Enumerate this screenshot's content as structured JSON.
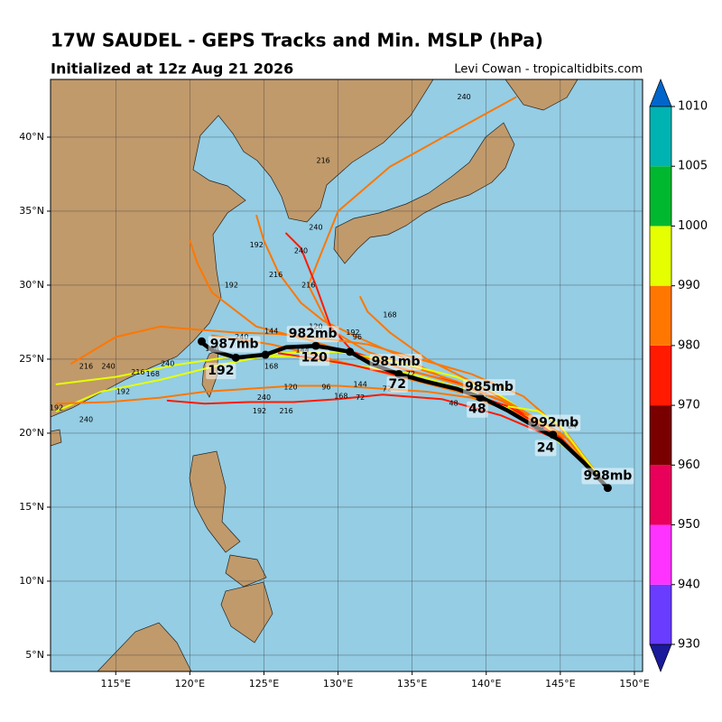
{
  "chart_data": {
    "type": "track_map",
    "title": "17W SAUDEL - GEPS Tracks and Min. MSLP (hPa)",
    "subtitle": "Initialized at 12z Aug 21 2026",
    "credit": "Levi Cowan - tropicaltidbits.com",
    "xlim": [
      110.6,
      150.55
    ],
    "ylim": [
      3.9,
      43.9
    ],
    "xticks": [
      {
        "value": 115,
        "label": "115°E"
      },
      {
        "value": 120,
        "label": "120°E"
      },
      {
        "value": 125,
        "label": "125°E"
      },
      {
        "value": 130,
        "label": "130°E"
      },
      {
        "value": 135,
        "label": "135°E"
      },
      {
        "value": 140,
        "label": "140°E"
      },
      {
        "value": 145,
        "label": "145°E"
      },
      {
        "value": 150,
        "label": "150°E"
      }
    ],
    "yticks": [
      {
        "value": 5,
        "label": "5°N"
      },
      {
        "value": 10,
        "label": "10°N"
      },
      {
        "value": 15,
        "label": "15°N"
      },
      {
        "value": 20,
        "label": "20°N"
      },
      {
        "value": 25,
        "label": "25°N"
      },
      {
        "value": 30,
        "label": "30°N"
      },
      {
        "value": 35,
        "label": "35°N"
      },
      {
        "value": 40,
        "label": "40°N"
      }
    ],
    "grid": true,
    "colorbar": {
      "levels": [
        930,
        940,
        950,
        960,
        970,
        980,
        990,
        1000,
        1005,
        1010
      ],
      "colors": [
        "#6a3cff",
        "#ff33ff",
        "#e8005a",
        "#7a0000",
        "#ff1a00",
        "#ff7700",
        "#e6ff00",
        "#00b830",
        "#00b3b3"
      ],
      "under_color": "#1a1a9a",
      "over_color": "#0066cc"
    },
    "tracks": [
      {
        "color": "#ff7700",
        "lon": [
          148.2,
          145.5,
          142,
          138.5,
          135,
          131,
          128,
          125.5,
          123,
          121.5
        ],
        "lat": [
          16.3,
          19.6,
          21.5,
          22.7,
          23.6,
          24.6,
          25.4,
          26.0,
          26.4,
          26.6
        ]
      },
      {
        "color": "#ff7700",
        "lon": [
          148.2,
          145,
          141,
          137,
          134,
          131.5,
          129,
          127.5,
          126,
          125,
          124.5
        ],
        "lat": [
          16.3,
          19.8,
          22.2,
          23.8,
          25.3,
          26.4,
          27.6,
          28.8,
          30.8,
          33.0,
          34.7
        ]
      },
      {
        "color": "#ff7700",
        "lon": [
          148.2,
          145,
          141.5,
          138,
          135,
          132,
          129.5,
          128,
          130,
          133.5,
          138,
          142
        ],
        "lat": [
          16.3,
          19.8,
          22,
          23.5,
          24.5,
          25.5,
          27,
          30,
          35,
          38,
          40.5,
          42.7
        ]
      },
      {
        "color": "#ff1a00",
        "lon": [
          148.2,
          145,
          141.5,
          138,
          134.5,
          131,
          129.5,
          128.5,
          127.5,
          126.5
        ],
        "lat": [
          16.3,
          19.7,
          22,
          23.4,
          24.3,
          25.5,
          27.2,
          30,
          32.5,
          33.5
        ]
      },
      {
        "color": "#ff1a00",
        "lon": [
          148.2,
          145,
          141,
          137,
          133,
          130,
          127,
          124,
          121,
          118.5
        ],
        "lat": [
          16.3,
          19.5,
          21.2,
          22.3,
          22.6,
          22.3,
          22.1,
          22.1,
          22.0,
          22.2
        ]
      },
      {
        "color": "#e6ff00",
        "lon": [
          148.2,
          146,
          143,
          139,
          135,
          131,
          127,
          123,
          119,
          115,
          111
        ],
        "lat": [
          16.3,
          18.5,
          21,
          22.8,
          24,
          24.6,
          25.2,
          25.2,
          24.6,
          23.8,
          23.3
        ]
      },
      {
        "color": "#e6ff00",
        "lon": [
          148.2,
          146.5,
          144,
          141,
          138,
          134,
          130,
          126,
          122,
          118,
          114,
          111
        ],
        "lat": [
          16.3,
          18.2,
          20.5,
          22.5,
          23.8,
          24.8,
          25.5,
          25.4,
          24.6,
          23.6,
          22.8,
          21.5
        ]
      },
      {
        "color": "#ff7700",
        "lon": [
          148.2,
          145,
          142,
          139,
          136,
          133,
          130,
          127,
          124,
          121,
          118,
          114.5,
          111
        ],
        "lat": [
          16.3,
          19.7,
          21.4,
          22.4,
          22.8,
          23,
          23.2,
          23.2,
          23,
          22.8,
          22.4,
          22.1,
          22
        ]
      },
      {
        "color": "#ff7700",
        "lon": [
          148.2,
          145.5,
          142.5,
          139,
          135.5,
          132,
          129,
          126,
          123,
          120.5,
          118,
          115,
          112
        ],
        "lat": [
          16.3,
          19.9,
          22.5,
          24,
          25,
          26,
          26.4,
          26.7,
          26.8,
          27,
          27.2,
          26.5,
          24.7
        ]
      },
      {
        "color": "#ff7700",
        "lon": [
          148.2,
          145,
          142,
          139,
          136,
          133.5,
          132,
          131.5
        ],
        "lat": [
          16.3,
          19.6,
          21.8,
          23.5,
          25,
          26.8,
          28.2,
          29.2
        ]
      },
      {
        "color": "#ff7700",
        "lon": [
          148.2,
          145.2,
          142,
          138.5,
          135,
          131.5,
          128,
          124.5,
          121.5,
          120.5,
          120
        ],
        "lat": [
          16.3,
          19.9,
          21.8,
          23.2,
          24.2,
          25.2,
          26.3,
          27.2,
          29.5,
          31.5,
          33
        ]
      },
      {
        "color": "#ff1a00",
        "lon": [
          148.2,
          145,
          141.5,
          138,
          134.5,
          131,
          128,
          126
        ],
        "lat": [
          16.3,
          19.7,
          21.8,
          23.0,
          23.8,
          24.6,
          25.1,
          25.4
        ]
      },
      {
        "color": "#e6ff00",
        "lon": [
          148.2,
          146.5,
          145,
          143.5,
          141.5
        ],
        "lat": [
          16.3,
          18.5,
          20.5,
          21.5,
          21.8
        ]
      }
    ],
    "hour_labels": [
      {
        "lon": 145.8,
        "lat": 20.5,
        "text": "24"
      },
      {
        "lon": 143.6,
        "lat": 20.4,
        "text": "24"
      },
      {
        "lon": 139.6,
        "lat": 22.3,
        "text": "48"
      },
      {
        "lon": 137.8,
        "lat": 22.0,
        "text": "48"
      },
      {
        "lon": 134.9,
        "lat": 24.0,
        "text": "72"
      },
      {
        "lon": 133.3,
        "lat": 23.0,
        "text": "72"
      },
      {
        "lon": 131.5,
        "lat": 22.4,
        "text": "72"
      },
      {
        "lon": 131.3,
        "lat": 26.5,
        "text": "96"
      },
      {
        "lon": 129.2,
        "lat": 23.1,
        "text": "96"
      },
      {
        "lon": 128.5,
        "lat": 27.2,
        "text": "120"
      },
      {
        "lon": 126.8,
        "lat": 23.1,
        "text": "120"
      },
      {
        "lon": 127.6,
        "lat": 25.6,
        "text": "144"
      },
      {
        "lon": 131.5,
        "lat": 23.3,
        "text": "144"
      },
      {
        "lon": 125.5,
        "lat": 26.9,
        "text": "144"
      },
      {
        "lon": 133.5,
        "lat": 28.0,
        "text": "168"
      },
      {
        "lon": 125.5,
        "lat": 24.5,
        "text": "168"
      },
      {
        "lon": 121.5,
        "lat": 25.7,
        "text": "168"
      },
      {
        "lon": 117.5,
        "lat": 24.0,
        "text": "168"
      },
      {
        "lon": 130.2,
        "lat": 22.5,
        "text": "168"
      },
      {
        "lon": 131,
        "lat": 26.8,
        "text": "192"
      },
      {
        "lon": 124.5,
        "lat": 32.7,
        "text": "192"
      },
      {
        "lon": 122.8,
        "lat": 30.0,
        "text": "192"
      },
      {
        "lon": 115.5,
        "lat": 22.8,
        "text": "192"
      },
      {
        "lon": 111,
        "lat": 21.7,
        "text": "192"
      },
      {
        "lon": 124.7,
        "lat": 21.5,
        "text": "192"
      },
      {
        "lon": 125.8,
        "lat": 30.7,
        "text": "216"
      },
      {
        "lon": 129,
        "lat": 38.4,
        "text": "216"
      },
      {
        "lon": 128,
        "lat": 30.0,
        "text": "216"
      },
      {
        "lon": 116.5,
        "lat": 24.1,
        "text": "216"
      },
      {
        "lon": 113,
        "lat": 24.5,
        "text": "216"
      },
      {
        "lon": 126.5,
        "lat": 21.5,
        "text": "216"
      },
      {
        "lon": 123.5,
        "lat": 26.5,
        "text": "240"
      },
      {
        "lon": 127.5,
        "lat": 32.3,
        "text": "240"
      },
      {
        "lon": 128.5,
        "lat": 33.9,
        "text": "240"
      },
      {
        "lon": 138.5,
        "lat": 42.7,
        "text": "240"
      },
      {
        "lon": 114.5,
        "lat": 24.5,
        "text": "240"
      },
      {
        "lon": 110,
        "lat": 22.5,
        "text": "240"
      },
      {
        "lon": 113,
        "lat": 20.9,
        "text": "240"
      },
      {
        "lon": 118.5,
        "lat": 24.7,
        "text": "240"
      },
      {
        "lon": 125,
        "lat": 22.4,
        "text": "240"
      }
    ],
    "mean_track": {
      "color": "#000000",
      "lon": [
        148.2,
        146.6,
        145.0,
        143.2,
        141.5,
        139.7,
        138.0,
        135.9,
        134.1,
        132.2,
        130.8,
        128.5,
        126.5,
        125.1,
        123.1,
        121.5,
        120.7
      ],
      "lat": [
        16.3,
        18.0,
        19.5,
        20.5,
        21.5,
        22.4,
        23.0,
        23.5,
        24.0,
        24.7,
        25.5,
        25.9,
        25.8,
        25.3,
        25.1,
        25.6,
        26.2
      ]
    },
    "mean_points": {
      "lon": [
        148.2,
        144.5,
        139.6,
        134.1,
        130.8,
        128.5,
        125.1,
        123.1,
        120.8
      ],
      "lat": [
        16.3,
        19.9,
        22.4,
        24.0,
        25.5,
        25.9,
        25.3,
        25.1,
        26.2
      ]
    },
    "annotations": [
      {
        "lon": 148.2,
        "lat": 17.1,
        "text": "998mb"
      },
      {
        "lon": 144.6,
        "lat": 20.7,
        "text": "992mb"
      },
      {
        "lon": 144.0,
        "lat": 19.0,
        "text": "24"
      },
      {
        "lon": 140.2,
        "lat": 23.1,
        "text": "985mb"
      },
      {
        "lon": 139.4,
        "lat": 21.6,
        "text": "48"
      },
      {
        "lon": 134.0,
        "lat": 23.3,
        "text": "72"
      },
      {
        "lon": 133.9,
        "lat": 24.8,
        "text": "981mb"
      },
      {
        "lon": 128.4,
        "lat": 25.1,
        "text": "120"
      },
      {
        "lon": 128.3,
        "lat": 26.7,
        "text": "982mb"
      },
      {
        "lon": 122.1,
        "lat": 24.2,
        "text": "192"
      },
      {
        "lon": 123.0,
        "lat": 26.0,
        "text": "987mb"
      }
    ]
  }
}
